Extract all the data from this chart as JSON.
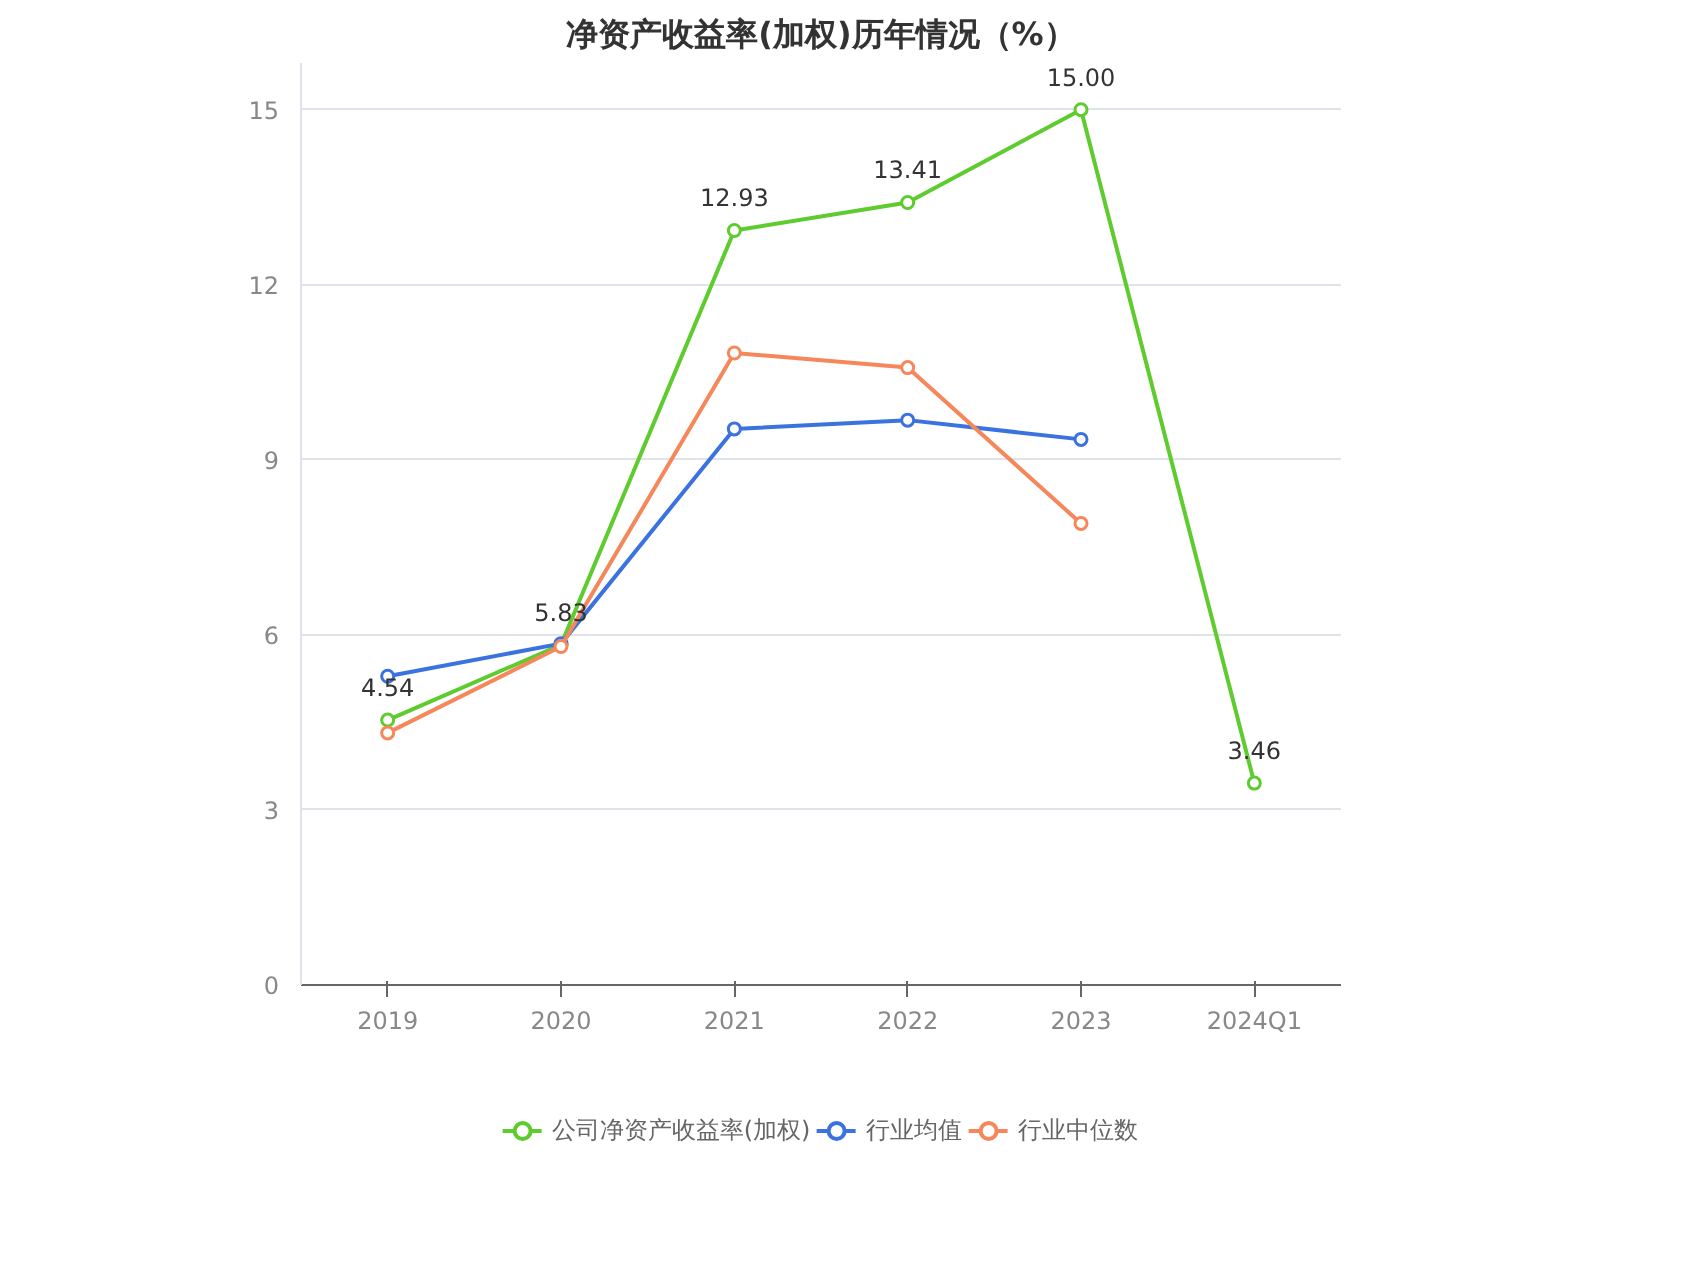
{
  "chart_data": {
    "type": "line",
    "title": "净资产收益率(加权)历年情况（%）",
    "categories": [
      "2019",
      "2020",
      "2021",
      "2022",
      "2023",
      "2024Q1"
    ],
    "series": [
      {
        "name": "公司净资产收益率(加权)",
        "color": "#5ecb2e",
        "values": [
          4.54,
          5.83,
          12.93,
          13.41,
          15.0,
          3.46
        ],
        "value_labels": [
          "4.54",
          "5.83",
          "12.93",
          "13.41",
          "15.00",
          "3.46"
        ]
      },
      {
        "name": "行业均值",
        "color": "#3a73e0",
        "values": [
          5.29,
          5.85,
          9.53,
          9.68,
          9.35,
          null
        ]
      },
      {
        "name": "行业中位数",
        "color": "#f5875b",
        "values": [
          4.32,
          5.8,
          10.83,
          10.58,
          7.91,
          null
        ]
      }
    ],
    "ylim": [
      0,
      15.8
    ],
    "yticks": [
      0,
      3,
      6,
      9,
      12,
      15
    ],
    "grid": "y",
    "legend": "bottom",
    "marker": "circle",
    "line_style": "solid"
  }
}
